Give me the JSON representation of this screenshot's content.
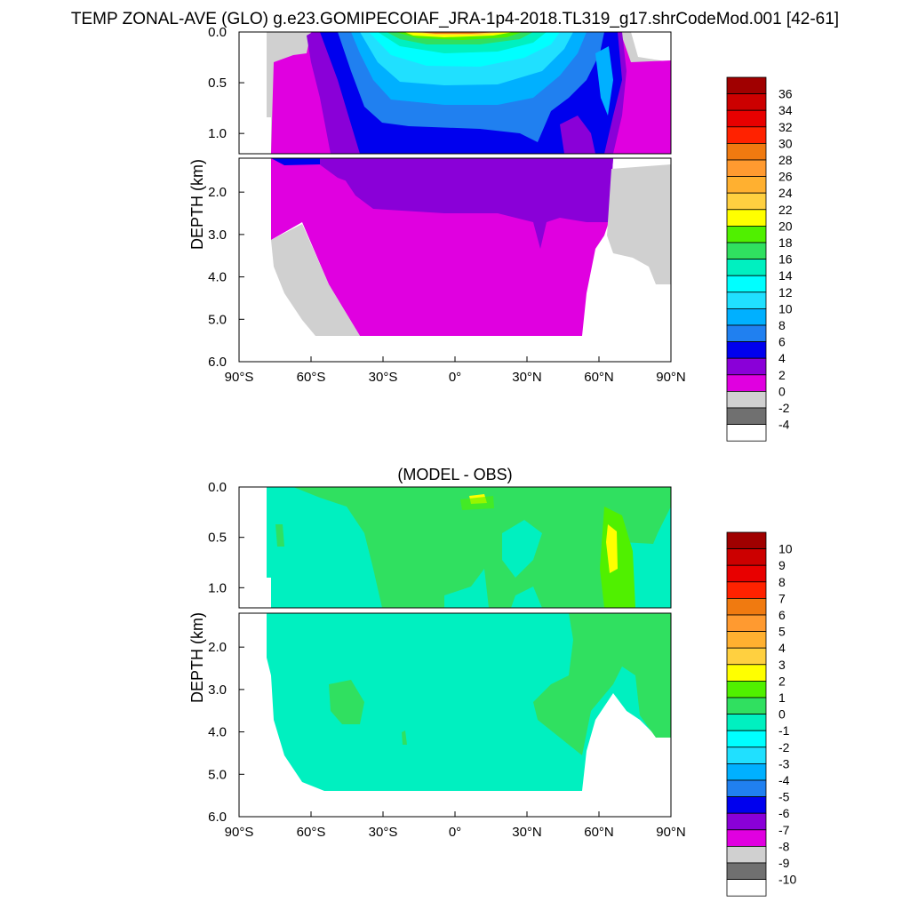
{
  "title": "TEMP ZONAL-AVE (GLO) g.e23.GOMIPECOIAF_JRA-1p4-2018.TL319_g17.shrCodeMod.001 [42-61]",
  "chart_data": [
    {
      "type": "contour",
      "subtitle": "",
      "ylabel": "DEPTH (km)",
      "xlabel": "",
      "x_ticks": [
        "90°S",
        "60°S",
        "30°S",
        "0°",
        "30°N",
        "60°N",
        "90°N"
      ],
      "y_ticks_upper": [
        "0.0",
        "0.5",
        "1.0"
      ],
      "y_ticks_lower": [
        "2.0",
        "3.0",
        "4.0",
        "5.0",
        "6.0"
      ],
      "xlim": [
        -90,
        90
      ],
      "ylim_km": [
        0,
        6
      ],
      "upper_panel_depth_km": [
        0,
        1.2
      ],
      "legend_position": "right",
      "colorbar": {
        "labels": [
          "36",
          "34",
          "32",
          "30",
          "28",
          "26",
          "24",
          "22",
          "20",
          "18",
          "16",
          "14",
          "12",
          "10",
          "8",
          "6",
          "4",
          "2",
          "0",
          "-2",
          "-4"
        ],
        "colors": [
          "#a00000",
          "#cc0000",
          "#e80000",
          "#ff2200",
          "#f07a10",
          "#ff9a30",
          "#ffb030",
          "#ffd040",
          "#ffff00",
          "#50f000",
          "#30e060",
          "#00f0c0",
          "#00ffff",
          "#20e0ff",
          "#00b0ff",
          "#2080f0",
          "#0000ee",
          "#8a00d8",
          "#e000e0",
          "#d0d0d0",
          "#707070",
          "#ffffff"
        ]
      },
      "fill_colors": {
        "land": "#d0d0d0",
        "deep": "#e000e0",
        "mid": "#8a00d8",
        "thermo": "#0000ee",
        "warm": "#ffb030",
        "top": "#f07a10"
      }
    },
    {
      "type": "contour",
      "subtitle": "(MODEL - OBS)",
      "ylabel": "DEPTH (km)",
      "xlabel": "",
      "x_ticks": [
        "90°S",
        "60°S",
        "30°S",
        "0°",
        "30°N",
        "60°N",
        "90°N"
      ],
      "y_ticks_upper": [
        "0.0",
        "0.5",
        "1.0"
      ],
      "y_ticks_lower": [
        "2.0",
        "3.0",
        "4.0",
        "5.0",
        "6.0"
      ],
      "xlim": [
        -90,
        90
      ],
      "ylim_km": [
        0,
        6
      ],
      "upper_panel_depth_km": [
        0,
        1.2
      ],
      "legend_position": "right",
      "colorbar": {
        "labels": [
          "10",
          "9",
          "8",
          "7",
          "6",
          "5",
          "4",
          "3",
          "2",
          "1",
          "0",
          "-1",
          "-2",
          "-3",
          "-4",
          "-5",
          "-6",
          "-7",
          "-8",
          "-9",
          "-10"
        ],
        "colors": [
          "#a00000",
          "#cc0000",
          "#e80000",
          "#ff2200",
          "#f07a10",
          "#ff9a30",
          "#ffb030",
          "#ffd040",
          "#ffff00",
          "#50f000",
          "#30e060",
          "#00f0c0",
          "#00ffff",
          "#20e0ff",
          "#00b0ff",
          "#2080f0",
          "#0000ee",
          "#8a00d8",
          "#e000e0",
          "#d0d0d0",
          "#707070",
          "#ffffff"
        ]
      },
      "fill_colors": {
        "base": "#00f0c0",
        "pos": "#30e060",
        "pos2": "#50f000",
        "hot": "#ffff00"
      }
    }
  ]
}
